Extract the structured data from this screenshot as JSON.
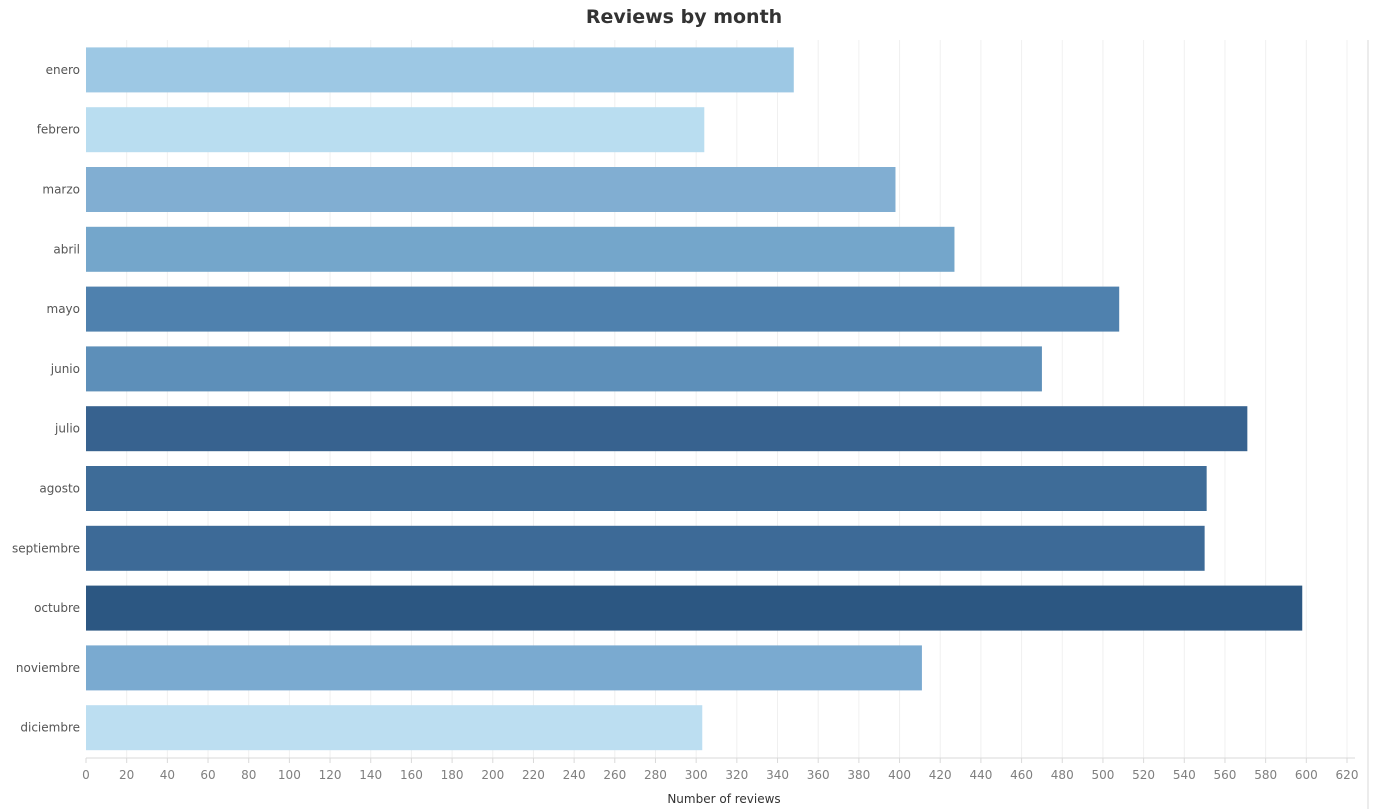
{
  "chart_data": {
    "type": "bar",
    "orientation": "horizontal",
    "title": "Reviews by month",
    "xlabel": "Number of reviews",
    "ylabel": "",
    "xlim": [
      0,
      620
    ],
    "grid": true,
    "x_ticks": [
      0,
      20,
      40,
      60,
      80,
      100,
      120,
      140,
      160,
      180,
      200,
      220,
      240,
      260,
      280,
      300,
      320,
      340,
      360,
      380,
      400,
      420,
      440,
      460,
      480,
      500,
      520,
      540,
      560,
      580,
      600,
      620
    ],
    "categories": [
      "enero",
      "febrero",
      "marzo",
      "abril",
      "mayo",
      "junio",
      "julio",
      "agosto",
      "septiembre",
      "octubre",
      "noviembre",
      "diciembre"
    ],
    "values": [
      348,
      304,
      398,
      427,
      508,
      470,
      571,
      551,
      550,
      598,
      411,
      303
    ],
    "colors": [
      "#9dc8e4",
      "#b9ddf0",
      "#81aed2",
      "#74a6cb",
      "#4f81ae",
      "#5d8fb9",
      "#37628f",
      "#3e6c98",
      "#3d6a97",
      "#2c5782",
      "#7aaad0",
      "#bcdef1"
    ]
  }
}
